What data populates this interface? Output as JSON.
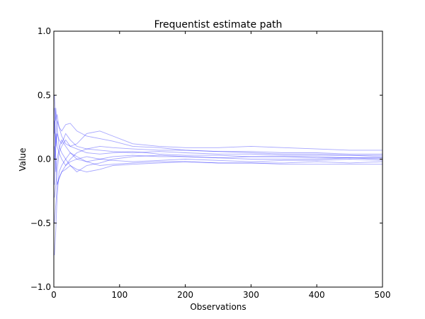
{
  "chart_data": {
    "type": "line",
    "title": "Frequentist estimate path",
    "xlabel": "Observations",
    "ylabel": "Value",
    "xlim": [
      0,
      500
    ],
    "ylim": [
      -1.0,
      1.0
    ],
    "xticks": [
      0,
      100,
      200,
      300,
      400,
      500
    ],
    "xtick_labels": [
      "0",
      "100",
      "200",
      "300",
      "400",
      "500"
    ],
    "yticks": [
      -1.0,
      -0.5,
      0.0,
      0.5,
      1.0
    ],
    "ytick_labels": [
      "−1.0",
      "−0.5",
      "0.0",
      "0.5",
      "1.0"
    ],
    "grid": false,
    "line_color": "#0000ff",
    "series": [
      {
        "x": [
          1,
          3,
          5,
          8,
          12,
          18,
          25,
          35,
          50,
          70,
          90,
          120,
          160,
          200,
          250,
          300,
          350,
          400,
          450,
          500
        ],
        "y": [
          0.5,
          0.3,
          0.35,
          0.25,
          0.22,
          0.27,
          0.28,
          0.22,
          0.18,
          0.16,
          0.14,
          0.1,
          0.09,
          0.07,
          0.06,
          0.05,
          0.04,
          0.04,
          0.03,
          0.02
        ]
      },
      {
        "x": [
          1,
          3,
          5,
          8,
          12,
          18,
          25,
          35,
          50,
          70,
          90,
          120,
          160,
          200,
          250,
          300,
          350,
          400,
          450,
          500
        ],
        "y": [
          -0.75,
          -0.55,
          -0.3,
          -0.1,
          -0.05,
          0.0,
          0.05,
          0.0,
          -0.02,
          0.0,
          0.02,
          0.03,
          0.02,
          0.02,
          0.01,
          0.02,
          0.02,
          0.01,
          0.01,
          0.01
        ]
      },
      {
        "x": [
          1,
          3,
          5,
          8,
          12,
          18,
          25,
          35,
          50,
          70,
          90,
          120,
          160,
          200,
          250,
          300,
          350,
          400,
          450,
          500
        ],
        "y": [
          0.4,
          0.1,
          0.2,
          0.15,
          0.12,
          0.2,
          0.15,
          0.1,
          0.08,
          0.07,
          0.06,
          0.05,
          0.06,
          0.05,
          0.04,
          0.04,
          0.03,
          0.03,
          0.03,
          0.03
        ]
      },
      {
        "x": [
          1,
          3,
          5,
          8,
          12,
          18,
          25,
          35,
          50,
          70,
          90,
          120,
          160,
          200,
          250,
          300,
          350,
          400,
          450,
          500
        ],
        "y": [
          -0.3,
          -0.2,
          -0.1,
          0.05,
          0.1,
          0.15,
          0.1,
          0.12,
          0.2,
          0.22,
          0.18,
          0.12,
          0.1,
          0.09,
          0.09,
          0.1,
          0.09,
          0.08,
          0.07,
          0.07
        ]
      },
      {
        "x": [
          1,
          3,
          5,
          8,
          12,
          18,
          25,
          35,
          50,
          70,
          90,
          120,
          160,
          200,
          250,
          300,
          350,
          400,
          450,
          500
        ],
        "y": [
          0.2,
          0.4,
          0.25,
          0.1,
          0.05,
          0.0,
          -0.05,
          -0.1,
          -0.05,
          -0.03,
          0.0,
          0.02,
          0.03,
          0.02,
          0.01,
          0.0,
          0.0,
          0.0,
          0.01,
          0.0
        ]
      },
      {
        "x": [
          1,
          3,
          5,
          8,
          12,
          18,
          25,
          35,
          50,
          70,
          90,
          120,
          160,
          200,
          250,
          300,
          350,
          400,
          450,
          500
        ],
        "y": [
          -0.5,
          -0.35,
          -0.2,
          -0.15,
          -0.1,
          -0.08,
          -0.05,
          -0.08,
          -0.1,
          -0.08,
          -0.05,
          -0.04,
          -0.03,
          -0.02,
          -0.03,
          -0.03,
          -0.03,
          -0.02,
          -0.03,
          -0.02
        ]
      },
      {
        "x": [
          1,
          3,
          5,
          8,
          12,
          18,
          25,
          35,
          50,
          70,
          90,
          120,
          160,
          200,
          250,
          300,
          350,
          400,
          450,
          500
        ],
        "y": [
          0.0,
          0.2,
          0.1,
          0.05,
          0.0,
          -0.05,
          0.0,
          0.05,
          0.08,
          0.1,
          0.09,
          0.08,
          0.07,
          0.07,
          0.06,
          0.06,
          0.05,
          0.05,
          0.04,
          0.04
        ]
      },
      {
        "x": [
          1,
          3,
          5,
          8,
          12,
          18,
          25,
          35,
          50,
          70,
          90,
          120,
          160,
          200,
          250,
          300,
          350,
          400,
          450,
          500
        ],
        "y": [
          0.3,
          0.0,
          -0.2,
          -0.15,
          -0.1,
          -0.05,
          -0.02,
          0.0,
          0.02,
          0.0,
          -0.01,
          -0.02,
          -0.01,
          0.0,
          -0.01,
          -0.02,
          -0.01,
          -0.01,
          0.0,
          -0.01
        ]
      },
      {
        "x": [
          1,
          3,
          5,
          8,
          12,
          18,
          25,
          35,
          50,
          70,
          90,
          120,
          160,
          200,
          250,
          300,
          350,
          400,
          450,
          500
        ],
        "y": [
          0.1,
          -0.1,
          0.0,
          0.08,
          0.15,
          0.1,
          0.05,
          0.02,
          -0.02,
          -0.05,
          -0.04,
          -0.03,
          -0.02,
          -0.02,
          -0.03,
          -0.03,
          -0.04,
          -0.04,
          -0.04,
          -0.04
        ]
      },
      {
        "x": [
          1,
          3,
          5,
          8,
          12,
          18,
          25,
          35,
          50,
          70,
          90,
          120,
          160,
          200,
          250,
          300,
          350,
          400,
          450,
          500
        ],
        "y": [
          -0.2,
          0.1,
          0.3,
          0.25,
          0.18,
          0.12,
          0.1,
          0.08,
          0.05,
          0.04,
          0.05,
          0.06,
          0.04,
          0.03,
          0.03,
          0.02,
          0.02,
          0.02,
          0.01,
          0.01
        ]
      }
    ]
  }
}
